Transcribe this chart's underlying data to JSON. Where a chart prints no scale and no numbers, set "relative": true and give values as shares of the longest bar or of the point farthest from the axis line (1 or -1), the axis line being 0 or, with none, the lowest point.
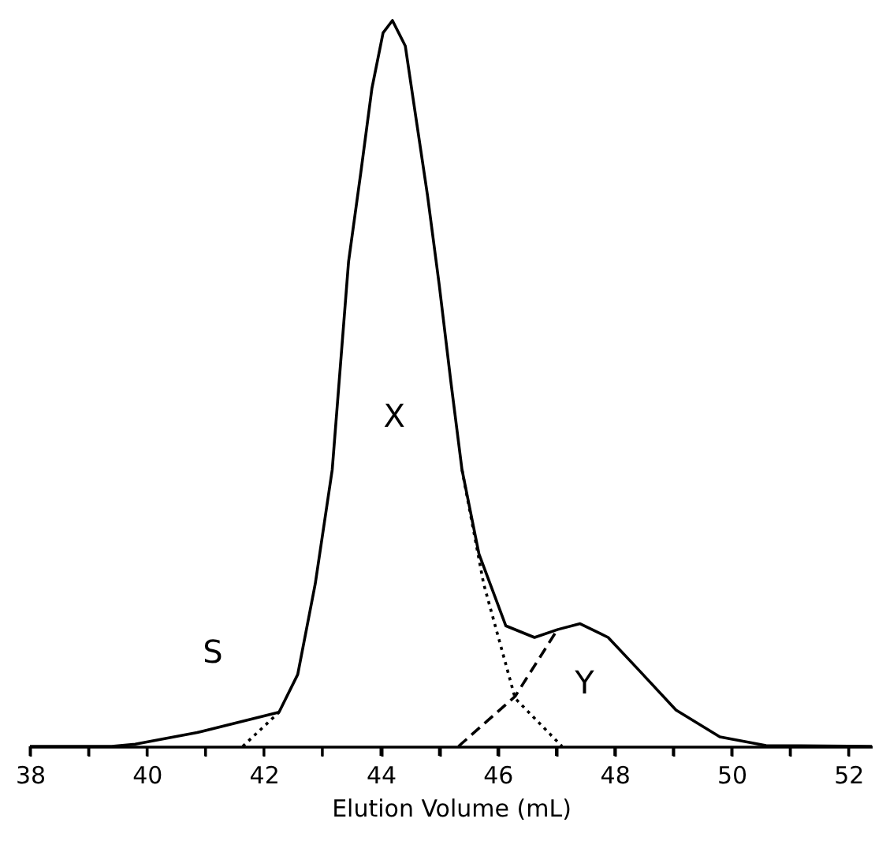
{
  "chart_data": {
    "type": "line",
    "relative": true,
    "xlabel": "Elution Volume   (mL)",
    "xlim": [
      38,
      52.4
    ],
    "xticks": [
      38,
      {
        "value": 39,
        "label": null
      },
      40,
      {
        "value": 41,
        "label": null
      },
      42,
      {
        "value": 43,
        "label": null
      },
      44,
      {
        "value": 45,
        "label": null
      },
      46,
      {
        "value": 47,
        "label": null
      },
      48,
      {
        "value": 49,
        "label": null
      },
      50,
      {
        "value": 51,
        "label": null
      },
      52
    ],
    "x": [
      38.0,
      39.4,
      39.8,
      40.86,
      42.26,
      42.58,
      42.88,
      43.17,
      43.45,
      43.66,
      43.85,
      44.04,
      44.2,
      44.42,
      44.6,
      44.8,
      45.0,
      45.2,
      45.39,
      45.68,
      46.14,
      46.63,
      47.03,
      47.41,
      47.89,
      48.38,
      49.05,
      49.8,
      50.59,
      52.4
    ],
    "series": [
      {
        "color": "#000000",
        "line_style": "solid",
        "values": [
          0,
          0,
          0.003,
          0.019,
          0.047,
          0.099,
          0.224,
          0.381,
          0.668,
          0.791,
          0.907,
          0.983,
          1.0,
          0.965,
          0.867,
          0.759,
          0.636,
          0.502,
          0.381,
          0.265,
          0.166,
          0.15,
          0.161,
          0.169,
          0.15,
          0.108,
          0.05,
          0.013,
          0.001,
          0
        ]
      },
      {
        "color": "#000000",
        "line_style": "dotted",
        "x": [
          41.64,
          42.26
        ],
        "values": [
          0,
          0.047
        ]
      },
      {
        "color": "#000000",
        "line_style": "dotted",
        "x": [
          45.39,
          45.76,
          46.3,
          47.1
        ],
        "values": [
          0.381,
          0.224,
          0.066,
          0
        ]
      },
      {
        "color": "#000000",
        "line_style": "dashed",
        "x": [
          45.33,
          46.3,
          47.0
        ],
        "values": [
          0,
          0.069,
          0.158
        ]
      }
    ],
    "annotations": [
      "S",
      "X",
      "Y"
    ],
    "marker": "none"
  }
}
